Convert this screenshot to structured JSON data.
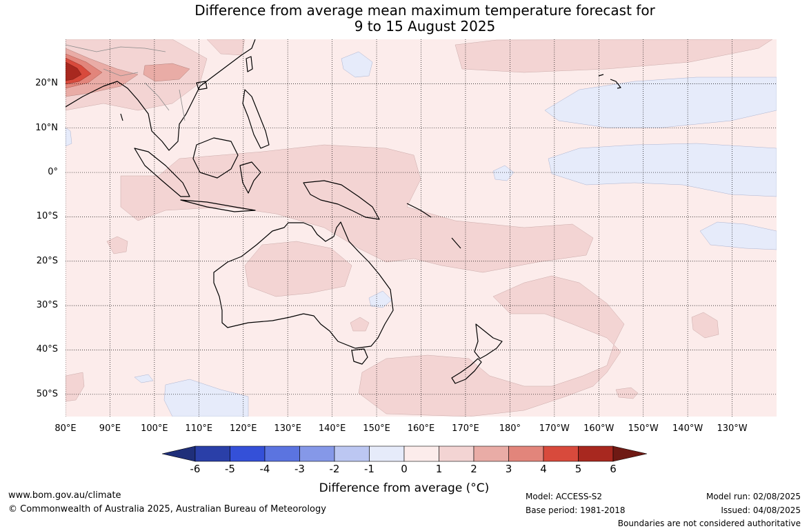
{
  "title_line1": "Difference from average mean maximum temperature forecast for",
  "title_line2": "9 to 15 August 2025",
  "map": {
    "lon_range": [
      80,
      240
    ],
    "lat_range": [
      -55,
      30
    ],
    "lon_ticks": [
      "80°E",
      "90°E",
      "100°E",
      "110°E",
      "120°E",
      "130°E",
      "140°E",
      "150°E",
      "160°E",
      "170°E",
      "180°",
      "170°W",
      "160°W",
      "150°W",
      "140°W",
      "130°W"
    ],
    "lat_ticks": [
      "20°N",
      "10°N",
      "0°",
      "10°S",
      "20°S",
      "30°S",
      "40°S",
      "50°S"
    ],
    "grid": "dotted",
    "background_anomaly_class": "0 to 1"
  },
  "colorbar": {
    "ticks": [
      "-6",
      "-5",
      "-4",
      "-3",
      "-2",
      "-1",
      "0",
      "1",
      "2",
      "3",
      "4",
      "5",
      "6"
    ],
    "colors": [
      "#1f2f7a",
      "#2a3fa8",
      "#3450d8",
      "#5b74e0",
      "#8598e8",
      "#bcc7f2",
      "#e6ebfa",
      "#fceceb",
      "#f3d4d3",
      "#e9aca6",
      "#e2857b",
      "#d84a3c",
      "#a8281f",
      "#6f1a14"
    ],
    "label": "Difference from average (°C)"
  },
  "footer": {
    "website": "www.bom.gov.au/climate",
    "copyright": "© Commonwealth of Australia 2025, Australian Bureau of Meteorology",
    "model": "Model: ACCESS-S2",
    "base_period": "Base period: 1981-2018",
    "model_run": "Model run: 02/08/2025",
    "issued": "Issued: 04/08/2025",
    "disclaimer": "Boundaries are not considered authoritative"
  }
}
